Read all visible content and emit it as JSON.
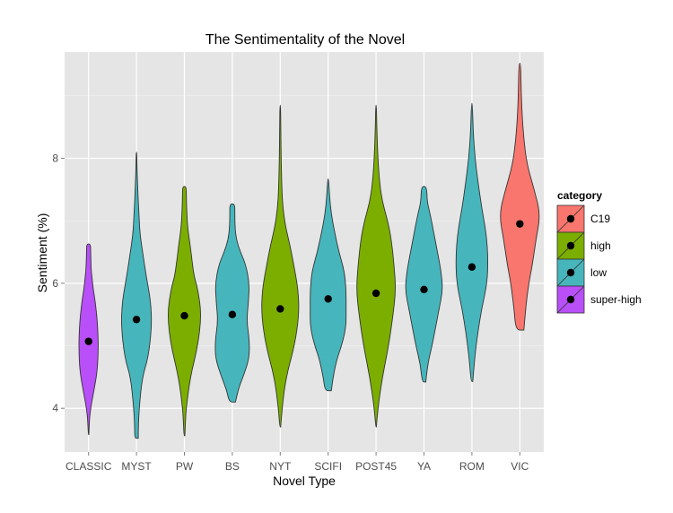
{
  "chart_data": {
    "type": "violin",
    "title": "The Sentimentality of the Novel",
    "xlabel": "Novel Type",
    "ylabel": "Sentiment (%)",
    "ylim": [
      3.3,
      9.7
    ],
    "yticks": [
      4,
      6,
      8
    ],
    "grid": true,
    "legend_position": "right",
    "legend": {
      "title": "category",
      "entries": [
        {
          "name": "C19",
          "color": "#f8766d"
        },
        {
          "name": "high",
          "color": "#7cae00"
        },
        {
          "name": "low",
          "color": "#47b6bc"
        },
        {
          "name": "super-high",
          "color": "#b84ff8"
        }
      ]
    },
    "categories": [
      "CLASSIC",
      "MYST",
      "PW",
      "BS",
      "NYT",
      "SCIFI",
      "POST45",
      "YA",
      "ROM",
      "VIC"
    ],
    "series": [
      {
        "category": "CLASSIC",
        "group": "super-high",
        "mean": 5.07,
        "min": 3.58,
        "max": 6.63,
        "profile": [
          [
            3.58,
            0.3
          ],
          [
            3.75,
            0.8
          ],
          [
            3.9,
            1.5
          ],
          [
            4.1,
            3.5
          ],
          [
            4.3,
            6.2
          ],
          [
            4.6,
            9.8
          ],
          [
            5.0,
            11
          ],
          [
            5.4,
            9.8
          ],
          [
            5.7,
            7.5
          ],
          [
            5.9,
            5.2
          ],
          [
            6.1,
            3.8
          ],
          [
            6.2,
            3.0
          ],
          [
            6.35,
            2.6
          ],
          [
            6.5,
            2.3
          ],
          [
            6.63,
            2.2
          ]
        ]
      },
      {
        "category": "MYST",
        "group": "low",
        "mean": 5.42,
        "min": 3.52,
        "max": 8.1,
        "profile": [
          [
            3.52,
            2.0
          ],
          [
            3.7,
            2.0
          ],
          [
            4.0,
            3.0
          ],
          [
            4.5,
            6.5
          ],
          [
            4.8,
            13
          ],
          [
            5.3,
            17
          ],
          [
            5.7,
            16
          ],
          [
            6.1,
            11
          ],
          [
            6.5,
            6.8
          ],
          [
            6.8,
            3.8
          ],
          [
            7.1,
            2.8
          ],
          [
            7.3,
            2.0
          ],
          [
            7.6,
            1.2
          ],
          [
            7.9,
            0.5
          ],
          [
            8.1,
            0.3
          ]
        ]
      },
      {
        "category": "PW",
        "group": "high",
        "mean": 5.48,
        "min": 3.56,
        "max": 7.55,
        "profile": [
          [
            3.56,
            0.5
          ],
          [
            3.8,
            1.2
          ],
          [
            4.0,
            2.0
          ],
          [
            4.5,
            6.5
          ],
          [
            5.0,
            15
          ],
          [
            5.5,
            19
          ],
          [
            5.9,
            15
          ],
          [
            6.1,
            11
          ],
          [
            6.3,
            9
          ],
          [
            6.6,
            6.5
          ],
          [
            6.9,
            3.5
          ],
          [
            7.2,
            2.5
          ],
          [
            7.4,
            2.2
          ],
          [
            7.55,
            2.0
          ]
        ]
      },
      {
        "category": "BS",
        "group": "low",
        "mean": 5.5,
        "min": 4.1,
        "max": 7.27,
        "profile": [
          [
            4.1,
            3.5
          ],
          [
            4.3,
            6.5
          ],
          [
            4.5,
            12
          ],
          [
            4.8,
            19
          ],
          [
            5.1,
            19
          ],
          [
            5.4,
            16
          ],
          [
            5.7,
            18
          ],
          [
            6.0,
            19
          ],
          [
            6.3,
            15
          ],
          [
            6.5,
            9
          ],
          [
            6.7,
            4.5
          ],
          [
            6.9,
            3.0
          ],
          [
            7.1,
            2.8
          ],
          [
            7.27,
            2.8
          ]
        ]
      },
      {
        "category": "NYT",
        "group": "high",
        "mean": 5.59,
        "min": 3.7,
        "max": 8.85,
        "profile": [
          [
            3.7,
            0.5
          ],
          [
            4.0,
            2.0
          ],
          [
            4.5,
            6.5
          ],
          [
            5.0,
            16
          ],
          [
            5.5,
            21
          ],
          [
            5.9,
            20
          ],
          [
            6.3,
            15
          ],
          [
            6.6,
            11
          ],
          [
            6.9,
            6
          ],
          [
            7.2,
            3.0
          ],
          [
            7.5,
            1.8
          ],
          [
            8.0,
            1.0
          ],
          [
            8.5,
            0.6
          ],
          [
            8.85,
            0.4
          ]
        ]
      },
      {
        "category": "SCIFI",
        "group": "low",
        "mean": 5.75,
        "min": 4.28,
        "max": 7.67,
        "profile": [
          [
            4.28,
            3.5
          ],
          [
            4.5,
            5.5
          ],
          [
            4.8,
            10
          ],
          [
            5.0,
            15
          ],
          [
            5.3,
            20
          ],
          [
            5.6,
            20
          ],
          [
            5.9,
            20
          ],
          [
            6.2,
            18
          ],
          [
            6.5,
            12
          ],
          [
            6.8,
            7.5
          ],
          [
            7.1,
            3.5
          ],
          [
            7.4,
            1.5
          ],
          [
            7.67,
            0.5
          ]
        ]
      },
      {
        "category": "POST45",
        "group": "high",
        "mean": 5.84,
        "min": 3.7,
        "max": 8.85,
        "profile": [
          [
            3.7,
            0.3
          ],
          [
            4.0,
            2.0
          ],
          [
            4.5,
            7
          ],
          [
            5.0,
            14
          ],
          [
            5.5,
            19
          ],
          [
            5.9,
            22
          ],
          [
            6.3,
            20
          ],
          [
            6.7,
            17
          ],
          [
            7.0,
            13
          ],
          [
            7.3,
            7
          ],
          [
            7.6,
            4.0
          ],
          [
            8.0,
            2.0
          ],
          [
            8.5,
            0.8
          ],
          [
            8.85,
            0.4
          ]
        ]
      },
      {
        "category": "YA",
        "group": "low",
        "mean": 5.9,
        "min": 4.42,
        "max": 7.55,
        "profile": [
          [
            4.42,
            2.0
          ],
          [
            4.7,
            4.0
          ],
          [
            5.0,
            9
          ],
          [
            5.3,
            13
          ],
          [
            5.6,
            17
          ],
          [
            5.9,
            21
          ],
          [
            6.2,
            19
          ],
          [
            6.5,
            15
          ],
          [
            6.8,
            11
          ],
          [
            7.1,
            7
          ],
          [
            7.3,
            3.5
          ],
          [
            7.55,
            3.0
          ]
        ]
      },
      {
        "category": "ROM",
        "group": "low",
        "mean": 6.26,
        "min": 4.43,
        "max": 8.88,
        "profile": [
          [
            4.43,
            1.0
          ],
          [
            4.8,
            3.0
          ],
          [
            5.2,
            6.5
          ],
          [
            5.6,
            11
          ],
          [
            6.0,
            17
          ],
          [
            6.4,
            18
          ],
          [
            6.8,
            16
          ],
          [
            7.2,
            11
          ],
          [
            7.6,
            7
          ],
          [
            8.0,
            3.5
          ],
          [
            8.4,
            1.5
          ],
          [
            8.88,
            0.5
          ]
        ]
      },
      {
        "category": "VIC",
        "group": "C19",
        "mean": 6.95,
        "min": 5.25,
        "max": 9.52,
        "profile": [
          [
            5.25,
            4.5
          ],
          [
            5.6,
            6.5
          ],
          [
            6.0,
            10
          ],
          [
            6.3,
            14
          ],
          [
            6.7,
            18
          ],
          [
            7.1,
            23
          ],
          [
            7.5,
            16
          ],
          [
            7.9,
            8
          ],
          [
            8.3,
            4.5
          ],
          [
            8.7,
            2.5
          ],
          [
            9.1,
            1.5
          ],
          [
            9.52,
            1.0
          ]
        ]
      }
    ]
  }
}
